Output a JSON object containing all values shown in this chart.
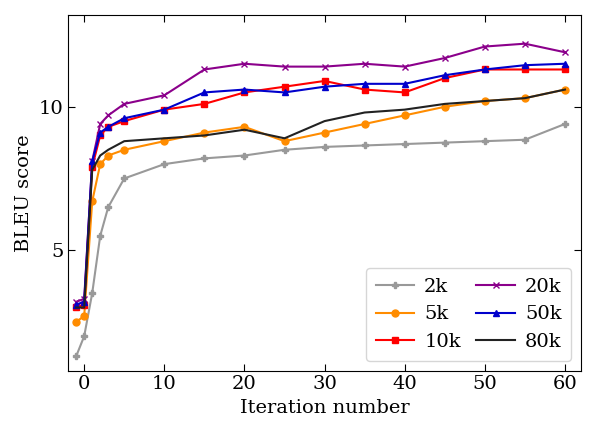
{
  "title": "",
  "xlabel": "Iteration number",
  "ylabel": "BLEU score",
  "series": [
    {
      "label": "2k",
      "color": "#999999",
      "marker": "P",
      "linestyle": "-",
      "x": [
        -1,
        0,
        1,
        2,
        3,
        5,
        10,
        15,
        20,
        25,
        30,
        35,
        40,
        45,
        50,
        55,
        60
      ],
      "y": [
        1.3,
        2.0,
        3.5,
        5.5,
        6.5,
        7.5,
        8.0,
        8.2,
        8.3,
        8.5,
        8.6,
        8.65,
        8.7,
        8.75,
        8.8,
        8.85,
        9.4
      ]
    },
    {
      "label": "5k",
      "color": "#ff8c00",
      "marker": "o",
      "linestyle": "-",
      "x": [
        -1,
        0,
        1,
        2,
        3,
        5,
        10,
        15,
        20,
        25,
        30,
        35,
        40,
        45,
        50,
        55,
        60
      ],
      "y": [
        2.5,
        2.7,
        6.7,
        8.0,
        8.3,
        8.5,
        8.8,
        9.1,
        9.3,
        8.8,
        9.1,
        9.4,
        9.7,
        10.0,
        10.2,
        10.3,
        10.6
      ]
    },
    {
      "label": "10k",
      "color": "#ff0000",
      "marker": "s",
      "linestyle": "-",
      "x": [
        -1,
        0,
        1,
        2,
        3,
        5,
        10,
        15,
        20,
        25,
        30,
        35,
        40,
        45,
        50,
        55,
        60
      ],
      "y": [
        3.0,
        3.1,
        7.9,
        9.0,
        9.3,
        9.5,
        9.9,
        10.1,
        10.5,
        10.7,
        10.9,
        10.6,
        10.5,
        11.0,
        11.3,
        11.3,
        11.3
      ]
    },
    {
      "label": "20k",
      "color": "#8b008b",
      "marker": "x",
      "linestyle": "-",
      "x": [
        -1,
        0,
        1,
        2,
        3,
        5,
        10,
        15,
        20,
        25,
        30,
        35,
        40,
        45,
        50,
        55,
        60
      ],
      "y": [
        3.2,
        3.3,
        8.1,
        9.4,
        9.7,
        10.1,
        10.4,
        11.3,
        11.5,
        11.4,
        11.4,
        11.5,
        11.4,
        11.7,
        12.1,
        12.2,
        11.9
      ]
    },
    {
      "label": "50k",
      "color": "#0000cc",
      "marker": "^",
      "linestyle": "-",
      "x": [
        -1,
        0,
        1,
        2,
        3,
        5,
        10,
        15,
        20,
        25,
        30,
        35,
        40,
        45,
        50,
        55,
        60
      ],
      "y": [
        3.1,
        3.2,
        8.1,
        9.1,
        9.3,
        9.6,
        9.9,
        10.5,
        10.6,
        10.5,
        10.7,
        10.8,
        10.8,
        11.1,
        11.3,
        11.45,
        11.5
      ]
    },
    {
      "label": "80k",
      "color": "#222222",
      "marker": "",
      "linestyle": "-",
      "x": [
        -1,
        0,
        1,
        2,
        3,
        5,
        10,
        15,
        20,
        25,
        30,
        35,
        40,
        45,
        50,
        55,
        60
      ],
      "y": [
        3.0,
        3.0,
        7.8,
        8.3,
        8.5,
        8.8,
        8.9,
        9.0,
        9.2,
        8.9,
        9.5,
        9.8,
        9.9,
        10.1,
        10.2,
        10.3,
        10.6
      ]
    }
  ],
  "xlim": [
    -2,
    62
  ],
  "ylim": [
    0.8,
    13.2
  ],
  "xticks": [
    0,
    10,
    20,
    30,
    40,
    50,
    60
  ],
  "yticks": [
    5,
    10
  ],
  "legend_order": [
    0,
    2,
    4,
    1,
    3,
    5
  ],
  "legend_labels_ordered": [
    "2k",
    "5k",
    "10k",
    "20k",
    "50k",
    "80k"
  ],
  "legend_loc": "lower right",
  "legend_ncol": 2,
  "fontsize": 14,
  "marker_size": 5,
  "linewidth": 1.5
}
